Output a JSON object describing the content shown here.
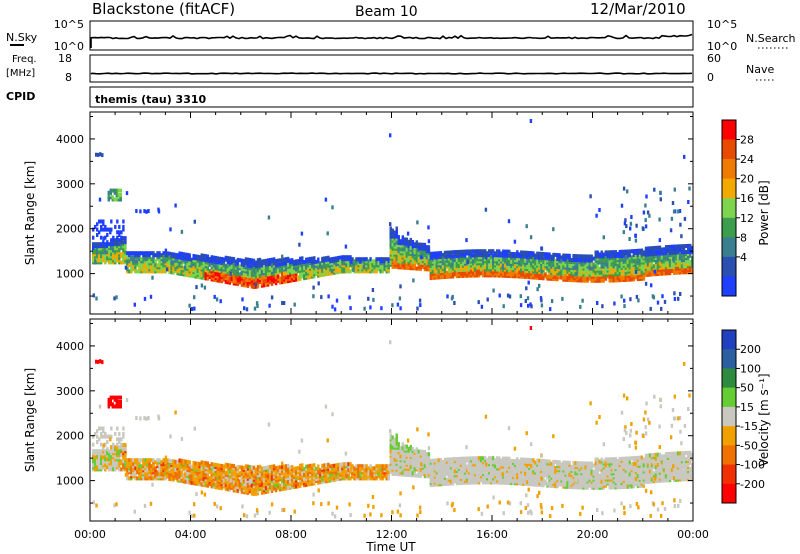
{
  "header": {
    "station": "Blackstone (fitACF)",
    "beam": "Beam 10",
    "date": "12/Mar/2010"
  },
  "noise_panel": {
    "left_label": "N.Sky",
    "right_label": "N.Search",
    "left_ticks": [
      "10^5",
      "10^0"
    ],
    "right_ticks": [
      "10^5",
      "10^0"
    ]
  },
  "freq_panel": {
    "left_label_1": "Freq.",
    "left_label_2": "[MHz]",
    "right_label": "Nave",
    "left_ticks": [
      "18",
      "8"
    ],
    "right_ticks": [
      "60",
      "0"
    ]
  },
  "cpid_panel": {
    "label": "CPID",
    "value": "themis (tau) 3310"
  },
  "colors": {
    "power_scale": [
      "#1f3fff",
      "#2a4fb0",
      "#3a7f8f",
      "#3c9d4c",
      "#7fd44d",
      "#f2a900",
      "#f07b00",
      "#e84a00",
      "#ff0000"
    ],
    "velocity_scale": [
      "#2040c0",
      "#2c5fa0",
      "#2e8a3e",
      "#66cc33",
      "#c8c8c0",
      "#f0a000",
      "#f07000",
      "#f03000",
      "#ff0000"
    ]
  },
  "chart_data": [
    {
      "type": "heatmap",
      "name": "power",
      "ylabel": "Slant Range [km]",
      "yticks": [
        1000,
        2000,
        3000,
        4000
      ],
      "ylim": [
        100,
        4600
      ],
      "xlim": [
        0,
        24
      ],
      "colorbar_label": "Power [dB]",
      "colorbar_ticks": [
        "28",
        "24",
        "20",
        "16",
        "12",
        "8",
        "4"
      ]
    },
    {
      "type": "heatmap",
      "name": "velocity",
      "ylabel": "Slant Range [km]",
      "yticks": [
        1000,
        2000,
        3000,
        4000
      ],
      "ylim": [
        100,
        4600
      ],
      "xlim": [
        0,
        24
      ],
      "colorbar_label": "Velocity [m s⁻¹]",
      "colorbar_ticks": [
        "200",
        "100",
        "50",
        "15",
        "-15",
        "-50",
        "-100",
        "-200"
      ],
      "xlabel": "Time UT",
      "xticks": [
        "00:00",
        "04:00",
        "08:00",
        "12:00",
        "16:00",
        "20:00",
        "00:00"
      ]
    }
  ]
}
